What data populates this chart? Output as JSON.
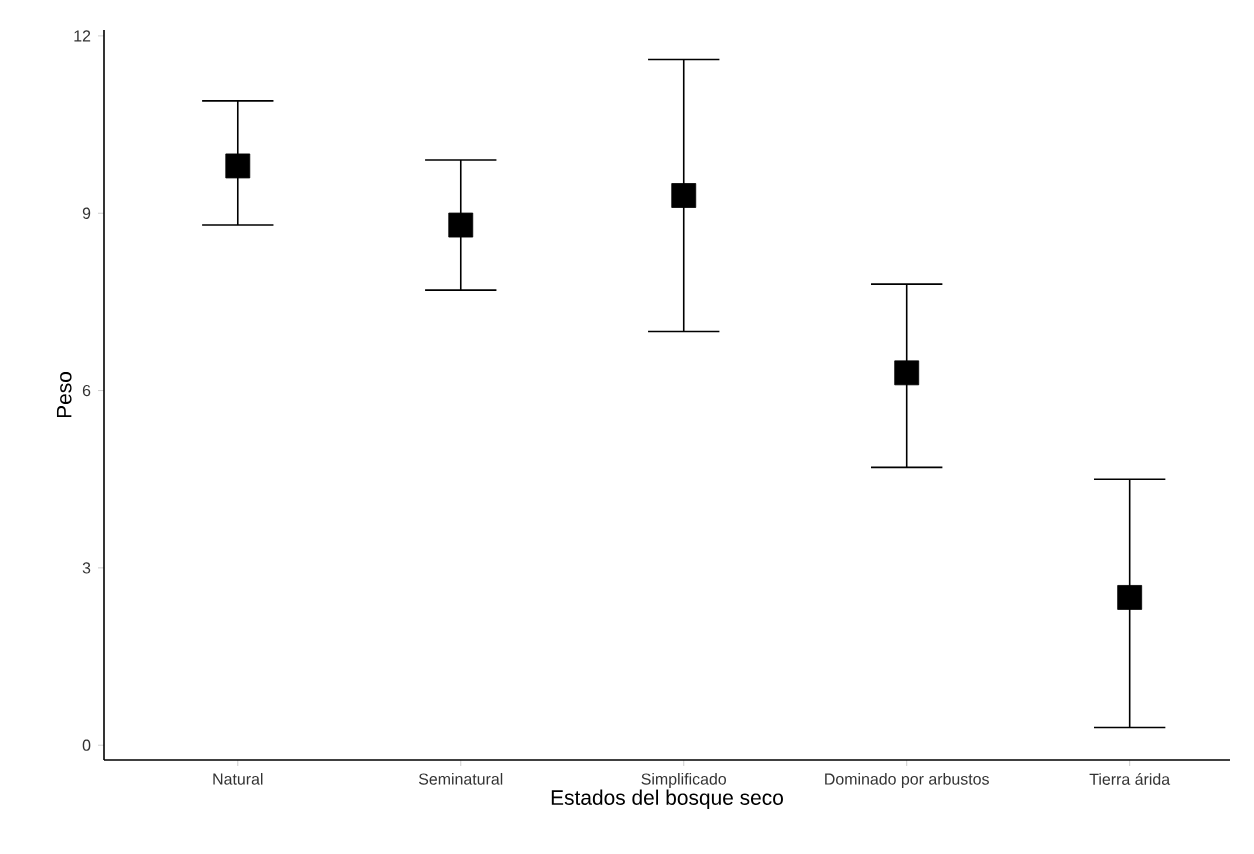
{
  "chart_data": {
    "type": "scatter",
    "xlabel": "Estados del bosque seco",
    "ylabel": "Peso",
    "categories": [
      "Natural",
      "Seminatural",
      "Simplificado",
      "Dominado por arbustos",
      "Tierra árida"
    ],
    "values": [
      9.8,
      8.8,
      9.3,
      6.3,
      2.5
    ],
    "errors": [
      [
        8.8,
        10.9
      ],
      [
        7.7,
        9.9
      ],
      [
        7.0,
        11.6
      ],
      [
        4.7,
        7.8
      ],
      [
        0.3,
        4.5
      ]
    ],
    "color": "#000000",
    "marker": "square",
    "ylim": [
      -0.25,
      12.1
    ],
    "yticks": [
      0,
      3,
      6,
      9,
      12
    ],
    "grid": false
  }
}
